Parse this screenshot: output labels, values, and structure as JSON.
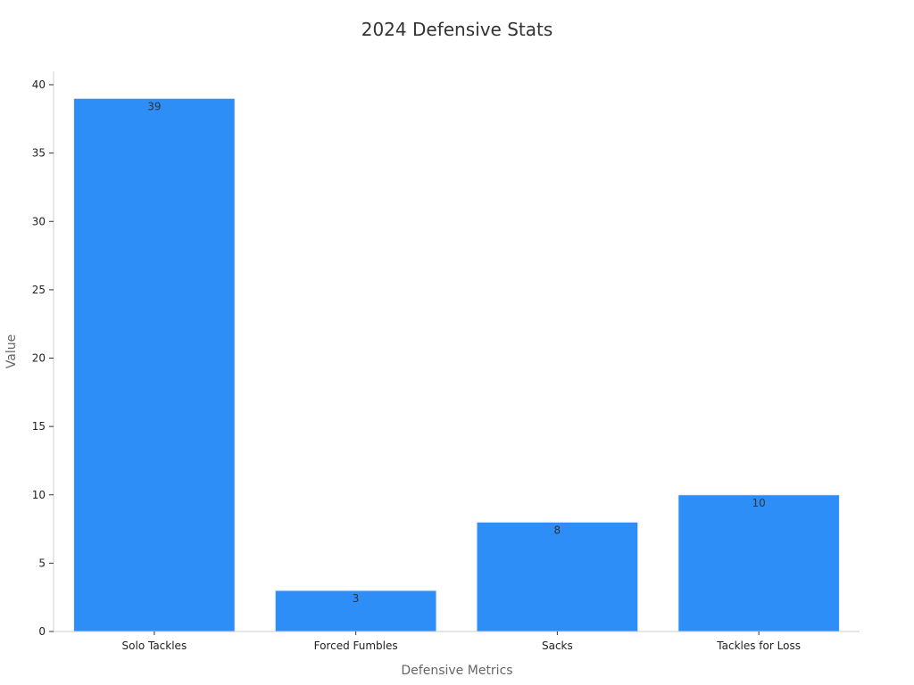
{
  "chart_data": {
    "type": "bar",
    "title": "2024 Defensive Stats",
    "xlabel": "Defensive Metrics",
    "ylabel": "Value",
    "categories": [
      "Solo Tackles",
      "Forced Fumbles",
      "Sacks",
      "Tackles for Loss"
    ],
    "values": [
      39,
      3,
      8,
      10
    ],
    "data_labels": [
      "39",
      "3",
      "8",
      "10"
    ],
    "ylim": [
      0,
      41
    ],
    "yticks": [
      0,
      5,
      10,
      15,
      20,
      25,
      30,
      35,
      40
    ],
    "ytick_labels": [
      "0",
      "5",
      "10",
      "15",
      "20",
      "25",
      "30",
      "35",
      "40"
    ],
    "grid": false,
    "legend": "none",
    "colors": {
      "bar": "#2d8ef7",
      "bar_edge": "#e6eef8"
    }
  }
}
